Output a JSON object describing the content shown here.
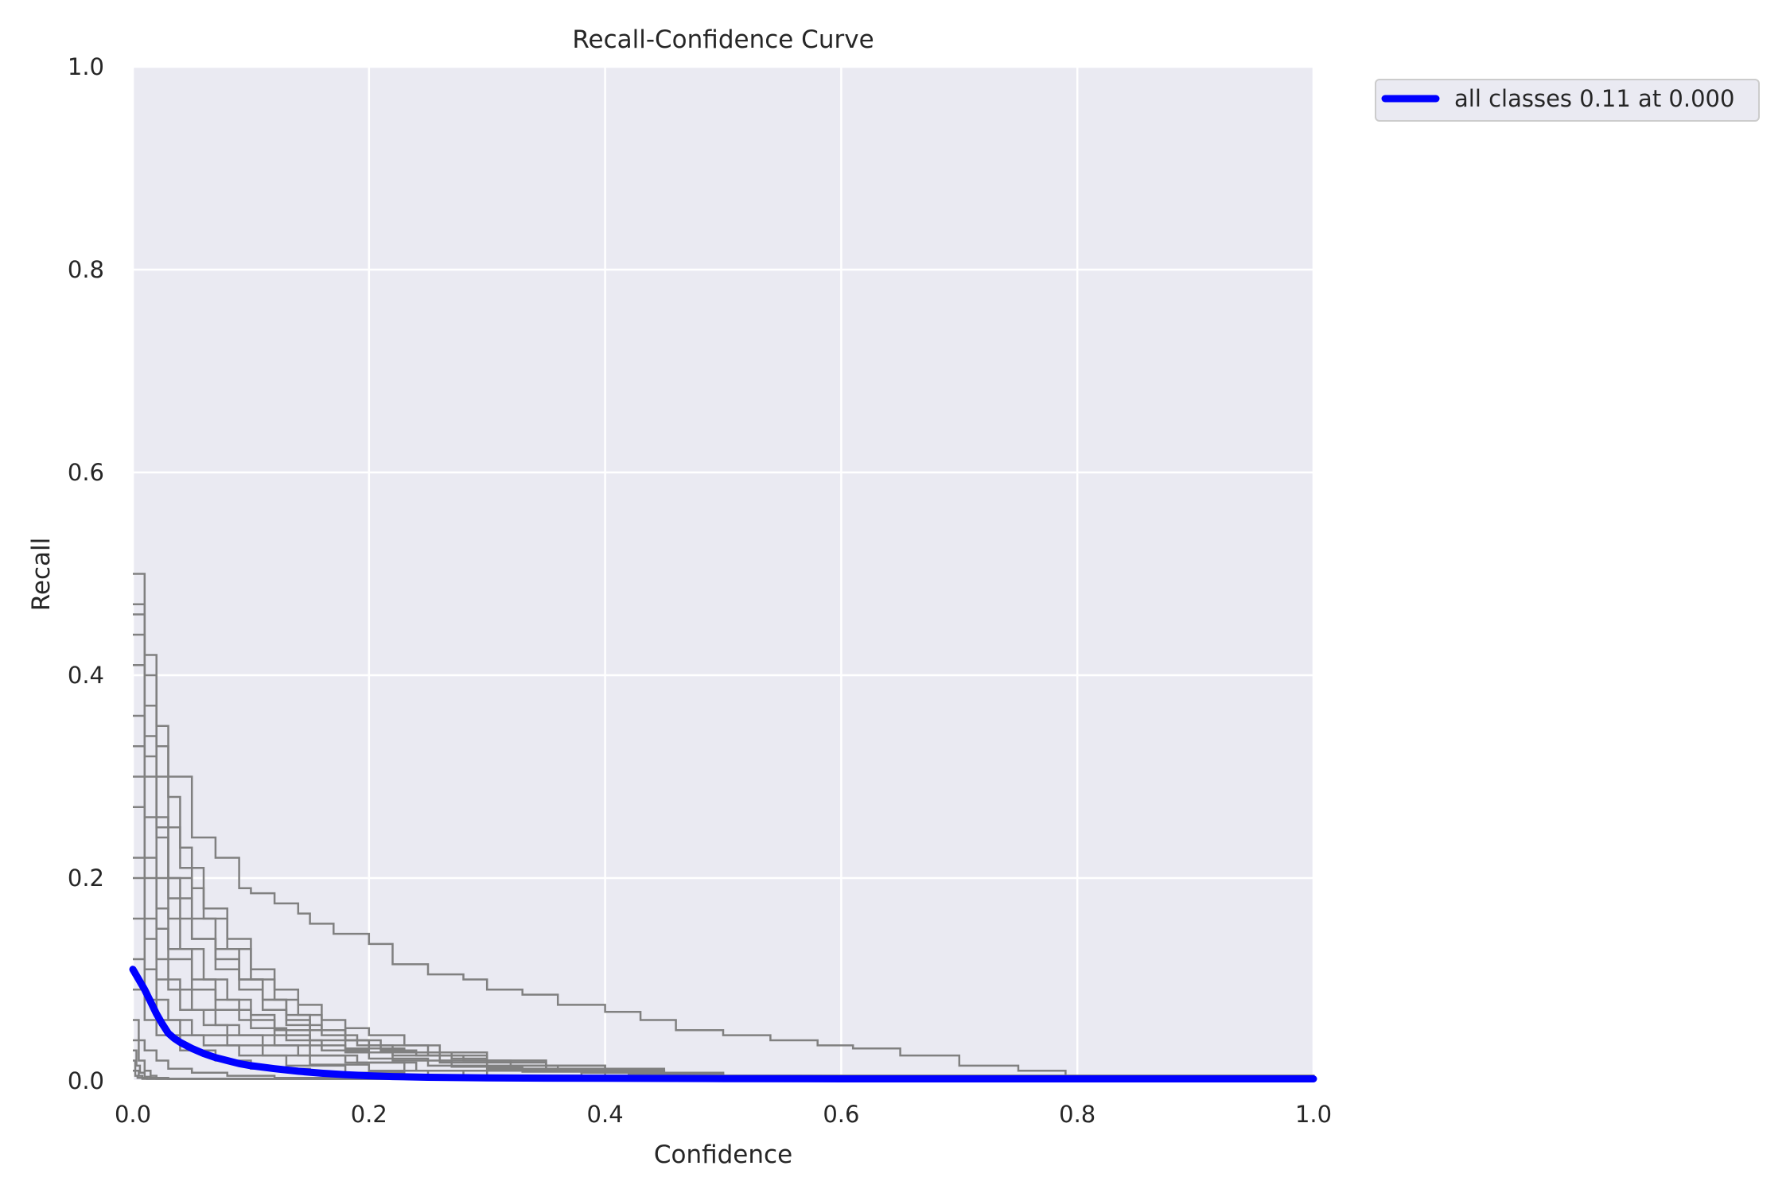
{
  "chart_data": {
    "type": "line",
    "title": "Recall-Confidence Curve",
    "xlabel": "Confidence",
    "ylabel": "Recall",
    "xlim": [
      0.0,
      1.0
    ],
    "ylim": [
      0.0,
      1.0
    ],
    "xticks": [
      "0.0",
      "0.2",
      "0.4",
      "0.6",
      "0.8",
      "1.0"
    ],
    "yticks": [
      "0.0",
      "0.2",
      "0.4",
      "0.6",
      "0.8",
      "1.0"
    ],
    "grid": true,
    "legend_position": "outside-top-right",
    "background_color": "#eaeaf2",
    "grid_color": "#ffffff",
    "class_curve_color": "#808080",
    "mean_curve_color": "#0000ff",
    "legend": [
      "all classes 0.11 at 0.000"
    ],
    "series": [
      {
        "x": [
          0,
          0.01,
          0.02,
          0.03,
          0.05,
          0.07,
          0.09,
          0.1,
          0.12,
          0.14,
          0.15,
          0.17,
          0.2,
          0.22,
          0.25,
          0.28,
          0.3,
          0.33,
          0.36,
          0.4,
          0.43,
          0.46,
          0.5,
          0.54,
          0.58,
          0.61,
          0.65,
          0.7,
          0.75,
          0.79,
          0.81,
          1.0
        ],
        "y": [
          0.5,
          0.42,
          0.35,
          0.3,
          0.24,
          0.22,
          0.19,
          0.185,
          0.175,
          0.165,
          0.155,
          0.145,
          0.135,
          0.115,
          0.105,
          0.1,
          0.09,
          0.085,
          0.075,
          0.068,
          0.06,
          0.05,
          0.045,
          0.04,
          0.035,
          0.032,
          0.025,
          0.015,
          0.01,
          0.005,
          0.002,
          0.002
        ]
      },
      {
        "x": [
          0,
          0.01,
          0.02,
          0.03,
          0.04,
          0.05,
          0.06,
          0.08,
          0.1,
          0.12,
          0.14,
          0.16,
          0.18,
          0.2,
          0.25,
          0.3,
          0.35,
          0.4,
          0.45,
          0.5,
          0.6,
          0.7,
          0.8,
          1.0
        ],
        "y": [
          0.47,
          0.4,
          0.33,
          0.28,
          0.23,
          0.19,
          0.16,
          0.13,
          0.1,
          0.08,
          0.065,
          0.05,
          0.04,
          0.035,
          0.025,
          0.02,
          0.015,
          0.012,
          0.008,
          0.005,
          0.003,
          0.003,
          0.002,
          0.002
        ]
      },
      {
        "x": [
          0,
          0.01,
          0.02,
          0.03,
          0.04,
          0.06,
          0.08,
          0.1,
          0.12,
          0.14,
          0.16,
          0.18,
          0.2,
          0.23,
          0.26,
          0.3,
          0.35,
          0.4,
          0.45,
          0.5,
          0.6,
          0.8,
          1.0
        ],
        "y": [
          0.46,
          0.37,
          0.3,
          0.25,
          0.21,
          0.17,
          0.14,
          0.11,
          0.09,
          0.075,
          0.06,
          0.052,
          0.045,
          0.035,
          0.028,
          0.02,
          0.015,
          0.01,
          0.007,
          0.004,
          0.003,
          0.002,
          0.002
        ]
      },
      {
        "x": [
          0,
          0.01,
          0.02,
          0.03,
          0.04,
          0.05,
          0.07,
          0.09,
          0.11,
          0.13,
          0.15,
          0.18,
          0.2,
          0.23,
          0.27,
          0.3,
          0.35,
          0.4,
          0.5,
          1.0
        ],
        "y": [
          0.44,
          0.34,
          0.26,
          0.2,
          0.16,
          0.14,
          0.12,
          0.1,
          0.08,
          0.06,
          0.05,
          0.04,
          0.032,
          0.028,
          0.022,
          0.018,
          0.012,
          0.008,
          0.003,
          0.002
        ]
      },
      {
        "x": [
          0,
          0.01,
          0.02,
          0.03,
          0.05,
          0.07,
          0.09,
          0.11,
          0.13,
          0.15,
          0.18,
          0.21,
          0.24,
          0.28,
          0.32,
          0.36,
          0.42,
          0.5,
          1.0
        ],
        "y": [
          0.41,
          0.32,
          0.25,
          0.2,
          0.16,
          0.13,
          0.1,
          0.08,
          0.065,
          0.05,
          0.04,
          0.03,
          0.025,
          0.02,
          0.015,
          0.01,
          0.006,
          0.003,
          0.002
        ]
      },
      {
        "x": [
          0,
          0.01,
          0.02,
          0.03,
          0.05,
          0.07,
          0.09,
          0.11,
          0.13,
          0.16,
          0.19,
          0.22,
          0.26,
          0.3,
          0.35,
          0.45,
          1.0
        ],
        "y": [
          0.36,
          0.3,
          0.24,
          0.18,
          0.14,
          0.11,
          0.09,
          0.07,
          0.055,
          0.045,
          0.035,
          0.028,
          0.02,
          0.015,
          0.01,
          0.005,
          0.002
        ]
      },
      {
        "x": [
          0,
          0.01,
          0.02,
          0.03,
          0.04,
          0.06,
          0.08,
          0.1,
          0.12,
          0.15,
          0.18,
          0.22,
          0.26,
          0.3,
          0.38,
          0.45,
          1.0
        ],
        "y": [
          0.33,
          0.26,
          0.2,
          0.16,
          0.13,
          0.1,
          0.08,
          0.065,
          0.05,
          0.04,
          0.032,
          0.025,
          0.018,
          0.012,
          0.008,
          0.004,
          0.002
        ]
      },
      {
        "x": [
          0,
          0.01,
          0.02,
          0.03,
          0.05,
          0.07,
          0.09,
          0.12,
          0.15,
          0.18,
          0.22,
          0.27,
          0.33,
          0.4,
          1.0
        ],
        "y": [
          0.3,
          0.22,
          0.17,
          0.13,
          0.1,
          0.08,
          0.06,
          0.045,
          0.035,
          0.028,
          0.02,
          0.014,
          0.009,
          0.005,
          0.002
        ]
      },
      {
        "x": [
          0,
          0.01,
          0.02,
          0.03,
          0.05,
          0.07,
          0.1,
          0.13,
          0.16,
          0.2,
          0.25,
          0.3,
          0.38,
          1.0
        ],
        "y": [
          0.27,
          0.2,
          0.15,
          0.12,
          0.09,
          0.07,
          0.052,
          0.04,
          0.03,
          0.022,
          0.015,
          0.01,
          0.005,
          0.002
        ]
      },
      {
        "x": [
          0,
          0.01,
          0.02,
          0.03,
          0.05,
          0.07,
          0.09,
          0.12,
          0.15,
          0.19,
          0.24,
          0.3,
          1.0
        ],
        "y": [
          0.22,
          0.16,
          0.12,
          0.09,
          0.07,
          0.055,
          0.045,
          0.035,
          0.025,
          0.018,
          0.01,
          0.005,
          0.002
        ]
      },
      {
        "x": [
          0,
          0.01,
          0.02,
          0.04,
          0.06,
          0.08,
          0.11,
          0.14,
          0.18,
          0.23,
          0.28,
          1.0
        ],
        "y": [
          0.2,
          0.14,
          0.1,
          0.07,
          0.055,
          0.045,
          0.035,
          0.025,
          0.018,
          0.01,
          0.005,
          0.002
        ]
      },
      {
        "x": [
          0,
          0.01,
          0.02,
          0.03,
          0.05,
          0.08,
          0.11,
          0.15,
          0.2,
          0.25,
          1.0
        ],
        "y": [
          0.16,
          0.11,
          0.08,
          0.06,
          0.045,
          0.035,
          0.025,
          0.016,
          0.01,
          0.005,
          0.002
        ]
      },
      {
        "x": [
          0,
          0.01,
          0.02,
          0.04,
          0.06,
          0.09,
          0.13,
          0.18,
          0.23,
          1.0
        ],
        "y": [
          0.12,
          0.08,
          0.06,
          0.045,
          0.035,
          0.025,
          0.015,
          0.008,
          0.004,
          0.002
        ]
      },
      {
        "x": [
          0,
          0.01,
          0.02,
          0.04,
          0.07,
          0.1,
          0.15,
          0.2,
          1.0
        ],
        "y": [
          0.09,
          0.06,
          0.045,
          0.03,
          0.02,
          0.012,
          0.006,
          0.003,
          0.002
        ]
      },
      {
        "x": [
          0,
          0.005,
          0.01,
          0.02,
          0.03,
          0.05,
          0.08,
          0.12,
          1.0
        ],
        "y": [
          0.06,
          0.04,
          0.03,
          0.02,
          0.012,
          0.008,
          0.005,
          0.003,
          0.002
        ]
      },
      {
        "x": [
          0,
          0.005,
          0.01,
          0.015,
          0.02,
          0.03,
          1.0
        ],
        "y": [
          0.04,
          0.02,
          0.01,
          0.005,
          0.003,
          0.002,
          0.002
        ]
      },
      {
        "x": [
          0,
          0.003,
          0.006,
          0.01,
          0.015,
          0.02,
          1.0
        ],
        "y": [
          0.03,
          0.015,
          0.008,
          0.004,
          0.003,
          0.002,
          0.002
        ]
      },
      {
        "x": [
          0,
          0.002,
          0.005,
          0.008,
          0.012,
          1.0
        ],
        "y": [
          0.02,
          0.01,
          0.005,
          0.003,
          0.002,
          0.002
        ]
      },
      {
        "x": [
          0,
          0.002,
          0.004,
          0.008,
          1.0
        ],
        "y": [
          0.01,
          0.005,
          0.003,
          0.002,
          0.002
        ]
      },
      {
        "name": "all classes 0.11 at 0.000",
        "mean": true,
        "x": [
          0,
          0.005,
          0.01,
          0.015,
          0.02,
          0.025,
          0.03,
          0.035,
          0.04,
          0.05,
          0.06,
          0.07,
          0.08,
          0.09,
          0.1,
          0.12,
          0.14,
          0.16,
          0.18,
          0.2,
          0.22,
          0.25,
          0.3,
          0.35,
          0.4,
          0.5,
          0.6,
          0.8,
          1.0
        ],
        "y": [
          0.11,
          0.1,
          0.09,
          0.078,
          0.066,
          0.056,
          0.047,
          0.042,
          0.038,
          0.032,
          0.027,
          0.023,
          0.02,
          0.017,
          0.015,
          0.012,
          0.0095,
          0.0075,
          0.006,
          0.005,
          0.0042,
          0.0035,
          0.003,
          0.0027,
          0.0025,
          0.0022,
          0.002,
          0.002,
          0.002
        ]
      }
    ]
  }
}
